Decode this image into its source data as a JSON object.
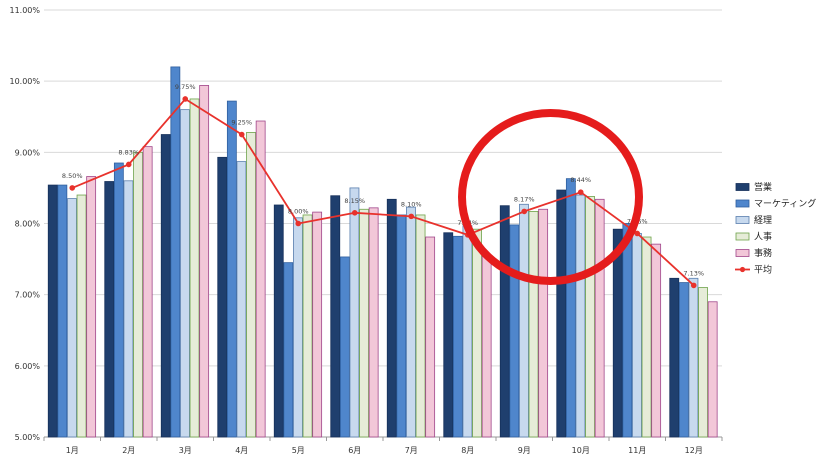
{
  "chart_data": {
    "type": "bar",
    "categories": [
      "1月",
      "2月",
      "3月",
      "4月",
      "5月",
      "6月",
      "7月",
      "8月",
      "9月",
      "10月",
      "11月",
      "12月"
    ],
    "ylim": [
      5.0,
      11.0
    ],
    "yticks": [
      "5.00%",
      "6.00%",
      "7.00%",
      "8.00%",
      "9.00%",
      "10.00%",
      "11.00%"
    ],
    "grid": true,
    "legend_position": "right",
    "series": [
      {
        "name": "営業",
        "kind": "bar",
        "color": "#1f3f6e",
        "stroke": "#16305a",
        "values": [
          8.54,
          8.59,
          9.25,
          8.93,
          8.26,
          8.39,
          8.34,
          7.87,
          8.25,
          8.47,
          7.92,
          7.23
        ]
      },
      {
        "name": "マーケティング",
        "kind": "bar",
        "color": "#4f86cc",
        "stroke": "#2f5f9e",
        "values": [
          8.54,
          8.85,
          10.2,
          9.72,
          7.45,
          7.53,
          8.12,
          7.82,
          7.98,
          8.63,
          8.0,
          7.17
        ]
      },
      {
        "name": "経理",
        "kind": "bar",
        "color": "#c7d9ee",
        "stroke": "#5a7fae",
        "values": [
          8.35,
          8.6,
          9.6,
          8.87,
          8.08,
          8.5,
          8.23,
          7.97,
          8.27,
          8.4,
          7.86,
          7.23
        ]
      },
      {
        "name": "人事",
        "kind": "bar",
        "color": "#e6ecd8",
        "stroke": "#6ea34a",
        "values": [
          8.4,
          9.0,
          9.75,
          9.28,
          8.12,
          8.2,
          8.12,
          7.92,
          8.17,
          8.38,
          7.81,
          7.1
        ]
      },
      {
        "name": "事務",
        "kind": "bar",
        "color": "#f2c7d8",
        "stroke": "#a0468a",
        "values": [
          8.66,
          9.08,
          9.94,
          9.44,
          8.16,
          8.22,
          7.81,
          7.54,
          8.2,
          8.34,
          7.71,
          6.9
        ]
      },
      {
        "name": "平均",
        "kind": "line",
        "color": "#e8322c",
        "values": [
          8.5,
          8.83,
          9.75,
          9.25,
          8.0,
          8.15,
          8.1,
          7.84,
          8.17,
          8.44,
          7.86,
          7.13
        ],
        "labels": [
          "8.50%",
          "8.83%",
          "9.75%",
          "9.25%",
          "8.00%",
          "8.15%",
          "8.10%",
          "7.84%",
          "8.17%",
          "8.44%",
          "7.86%",
          "7.13%"
        ]
      }
    ],
    "annotations": [
      {
        "type": "ellipse",
        "color": "#e51c1c",
        "around_categories": [
          "9月",
          "10月"
        ]
      }
    ]
  }
}
